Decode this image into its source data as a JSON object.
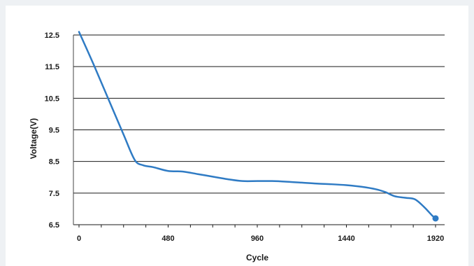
{
  "chart_data": {
    "type": "line",
    "title": "",
    "xlabel": "Cycle",
    "ylabel": "Voltage(V)",
    "xlim": [
      0,
      1920
    ],
    "ylim": [
      6.5,
      12.5
    ],
    "x_ticks": [
      0,
      480,
      960,
      1440,
      1920
    ],
    "y_ticks": [
      12.5,
      11.5,
      10.5,
      9.5,
      8.5,
      7.5,
      6.5
    ],
    "x_tick_labels": [
      "0",
      "480",
      "960",
      "1440",
      "1920"
    ],
    "y_tick_labels": [
      "12.5",
      "11.5",
      "10.5",
      "9.5",
      "8.5",
      "7.5",
      "6.5"
    ],
    "grid": "horizontal",
    "legend": "none",
    "series": [
      {
        "color": "#2f7bc4",
        "x": [
          0,
          80,
          160,
          240,
          300,
          345,
          400,
          480,
          560,
          640,
          720,
          800,
          880,
          960,
          1040,
          1120,
          1200,
          1280,
          1360,
          1440,
          1520,
          1600,
          1650,
          1700,
          1760,
          1810,
          1860,
          1900,
          1920
        ],
        "y": [
          12.6,
          11.55,
          10.45,
          9.35,
          8.55,
          8.38,
          8.32,
          8.2,
          8.18,
          8.1,
          8.02,
          7.94,
          7.88,
          7.88,
          7.88,
          7.86,
          7.83,
          7.8,
          7.78,
          7.75,
          7.7,
          7.62,
          7.53,
          7.4,
          7.35,
          7.3,
          7.05,
          6.8,
          6.7
        ]
      }
    ],
    "end_marker": {
      "x": 1920,
      "y": 6.7
    }
  }
}
